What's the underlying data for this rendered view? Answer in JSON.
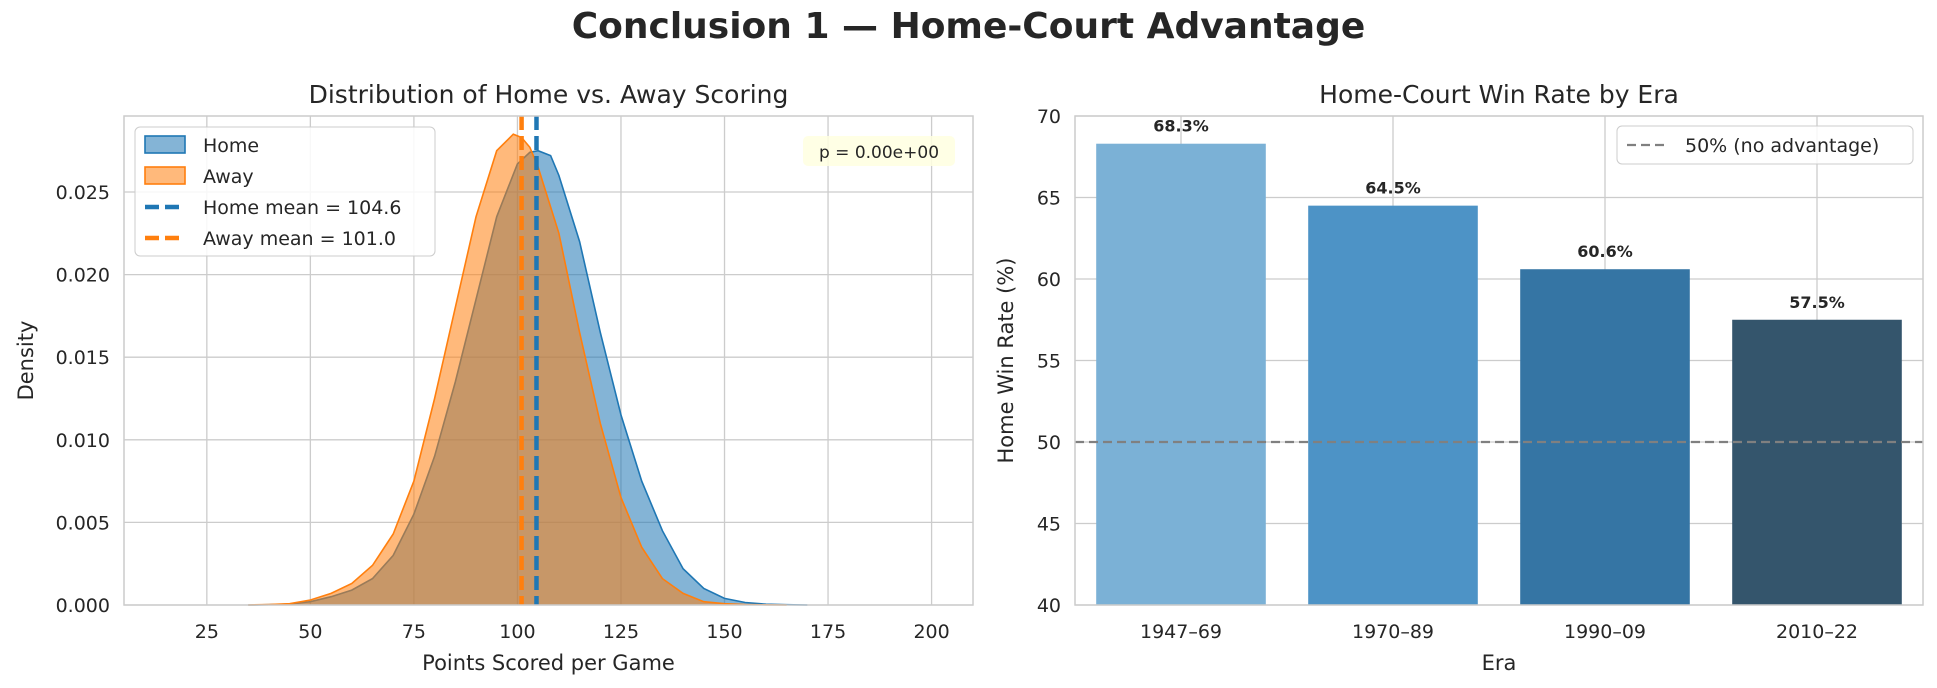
{
  "figure": {
    "title": "Conclusion 1 — Home-Court Advantage"
  },
  "chart_data": [
    {
      "type": "area",
      "title": "Distribution of Home vs. Away Scoring",
      "xlabel": "Points Scored per Game",
      "ylabel": "Density",
      "xlim": [
        5,
        210
      ],
      "ylim": [
        0,
        0.0296
      ],
      "xticks": [
        25,
        50,
        75,
        100,
        125,
        150,
        175,
        200
      ],
      "yticks": [
        0.0,
        0.005,
        0.01,
        0.015,
        0.02,
        0.025
      ],
      "ytick_labels": [
        "0.000",
        "0.005",
        "0.010",
        "0.015",
        "0.020",
        "0.025"
      ],
      "grid": true,
      "legend_position": "top-left",
      "annotation": "p = 0.00e+00",
      "series": [
        {
          "name": "Home",
          "color": "#1f77b4",
          "fill_opacity": 0.55,
          "x": [
            35,
            40,
            45,
            50,
            55,
            60,
            65,
            70,
            75,
            80,
            85,
            90,
            95,
            100,
            103,
            105,
            108,
            110,
            115,
            120,
            125,
            130,
            135,
            140,
            145,
            150,
            155,
            160,
            165,
            170
          ],
          "y": [
            0.0,
            2e-05,
            6e-05,
            0.0002,
            0.0005,
            0.0009,
            0.0016,
            0.003,
            0.0055,
            0.009,
            0.0135,
            0.0185,
            0.0235,
            0.0267,
            0.0274,
            0.0275,
            0.0272,
            0.026,
            0.022,
            0.0165,
            0.0115,
            0.0075,
            0.0045,
            0.0022,
            0.001,
            0.0004,
            0.00015,
            5e-05,
            2e-05,
            0.0
          ]
        },
        {
          "name": "Away",
          "color": "#ff7f0e",
          "fill_opacity": 0.55,
          "x": [
            35,
            40,
            45,
            50,
            55,
            60,
            65,
            70,
            75,
            80,
            85,
            90,
            95,
            99,
            101,
            103,
            105,
            110,
            115,
            120,
            125,
            130,
            135,
            140,
            145,
            150,
            155,
            160,
            165
          ],
          "y": [
            0.0,
            3e-05,
            8e-05,
            0.0003,
            0.0007,
            0.0013,
            0.0024,
            0.0043,
            0.0075,
            0.0125,
            0.018,
            0.0235,
            0.0275,
            0.0285,
            0.0283,
            0.0277,
            0.0265,
            0.0225,
            0.0165,
            0.011,
            0.0065,
            0.0035,
            0.0016,
            0.0007,
            0.0002,
            8e-05,
            3e-05,
            1e-05,
            0.0
          ]
        }
      ],
      "mean_lines": [
        {
          "name": "Home mean = 104.6",
          "value": 104.6,
          "color": "#1f77b4"
        },
        {
          "name": "Away mean = 101.0",
          "value": 101.0,
          "color": "#ff7f0e"
        }
      ]
    },
    {
      "type": "bar",
      "title": "Home-Court Win Rate by Era",
      "xlabel": "Era",
      "ylabel": "Home Win Rate (%)",
      "ylim": [
        40,
        70
      ],
      "yticks": [
        40,
        45,
        50,
        55,
        60,
        65,
        70
      ],
      "grid": true,
      "legend_position": "top-right",
      "categories": [
        "1947–69",
        "1970–89",
        "1990–09",
        "2010–22"
      ],
      "values": [
        68.3,
        64.5,
        60.6,
        57.5
      ],
      "value_labels": [
        "68.3%",
        "64.5%",
        "60.6%",
        "57.5%"
      ],
      "colors": [
        "#7bb1d6",
        "#4d93c6",
        "#3575a4",
        "#34556c"
      ],
      "reference_line": {
        "name": "50% (no advantage)",
        "value": 50,
        "color": "#808080"
      }
    }
  ]
}
